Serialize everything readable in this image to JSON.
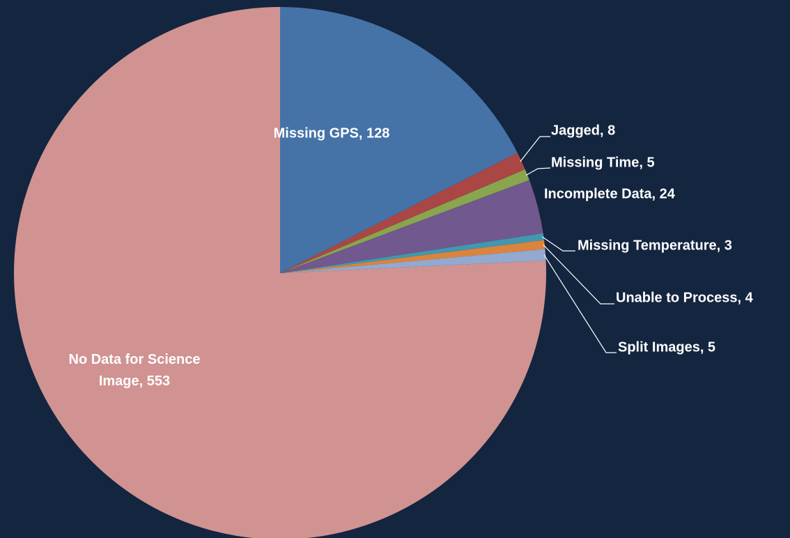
{
  "chart_data": {
    "type": "pie",
    "categories": [
      "Missing GPS",
      "Jagged",
      "Missing Time",
      "Incomplete Data",
      "Missing Temperature",
      "Unable to Process",
      "Split Images",
      "No Data for Science Image"
    ],
    "values": [
      128,
      8,
      5,
      24,
      3,
      4,
      5,
      553
    ],
    "value_labels": [
      "Missing GPS, 128",
      "Jagged, 8",
      "Missing Time, 5",
      "Incomplete Data, 24",
      "Missing Temperature, 3",
      "Unable to Process, 4",
      "Split Images, 5",
      "No Data for Science Image, 553"
    ],
    "colors": [
      "#4572a7",
      "#aa4643",
      "#89a54e",
      "#71588f",
      "#4198af",
      "#db843d",
      "#93a9cf",
      "#d09392"
    ]
  }
}
